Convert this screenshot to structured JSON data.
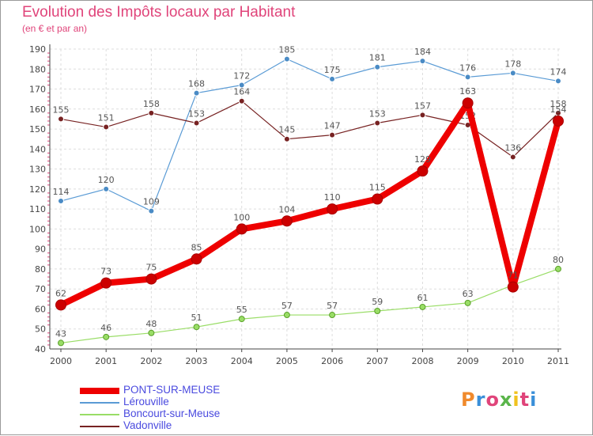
{
  "title": "Evolution des Impôts locaux par Habitant",
  "subtitle": "(en € et par an)",
  "logo": {
    "text": "Proxiti",
    "colors": [
      "#f08a2c",
      "#3a8fd9",
      "#e0447a",
      "#5ab54a",
      "#f0c21f",
      "#e0447a",
      "#3a8fd9"
    ]
  },
  "chart_data": {
    "type": "line",
    "x": [
      "2000",
      "2001",
      "2002",
      "2003",
      "2004",
      "2005",
      "2006",
      "2007",
      "2008",
      "2009",
      "2010",
      "2011"
    ],
    "ylim": [
      40,
      190
    ],
    "yticks": [
      40,
      50,
      60,
      70,
      80,
      90,
      100,
      110,
      120,
      130,
      140,
      150,
      160,
      170,
      180,
      190
    ],
    "grid": true,
    "series": [
      {
        "name": "PONT-SUR-MEUSE",
        "color": "#ee0000",
        "values": [
          62,
          73,
          75,
          85,
          100,
          104,
          110,
          115,
          129,
          163,
          71,
          154
        ],
        "labels": [
          "62",
          "73",
          "75",
          "85",
          "100",
          "104",
          "110",
          "115",
          "129",
          "163",
          "71",
          "154"
        ]
      },
      {
        "name": "Lérouville",
        "color": "#5a9bd5",
        "values": [
          114,
          120,
          109,
          168,
          172,
          185,
          175,
          181,
          184,
          176,
          178,
          174
        ],
        "labels": [
          "114",
          "120",
          "109",
          "168",
          "172",
          "185",
          "175",
          "181",
          "184",
          "176",
          "178",
          "174"
        ]
      },
      {
        "name": "Boncourt-sur-Meuse",
        "color": "#99dd66",
        "values": [
          43,
          46,
          48,
          51,
          55,
          57,
          57,
          59,
          61,
          63,
          72,
          80
        ],
        "labels": [
          "43",
          "46",
          "48",
          "51",
          "55",
          "57",
          "57",
          "59",
          "61",
          "63",
          "72",
          "80"
        ]
      },
      {
        "name": "Vadonville",
        "color": "#772222",
        "values": [
          155,
          151,
          158,
          153,
          164,
          145,
          147,
          153,
          157,
          152,
          136,
          158
        ],
        "labels": [
          "155",
          "151",
          "158",
          "153",
          "164",
          "145",
          "147",
          "153",
          "157",
          "152",
          "136",
          "158"
        ]
      }
    ]
  }
}
